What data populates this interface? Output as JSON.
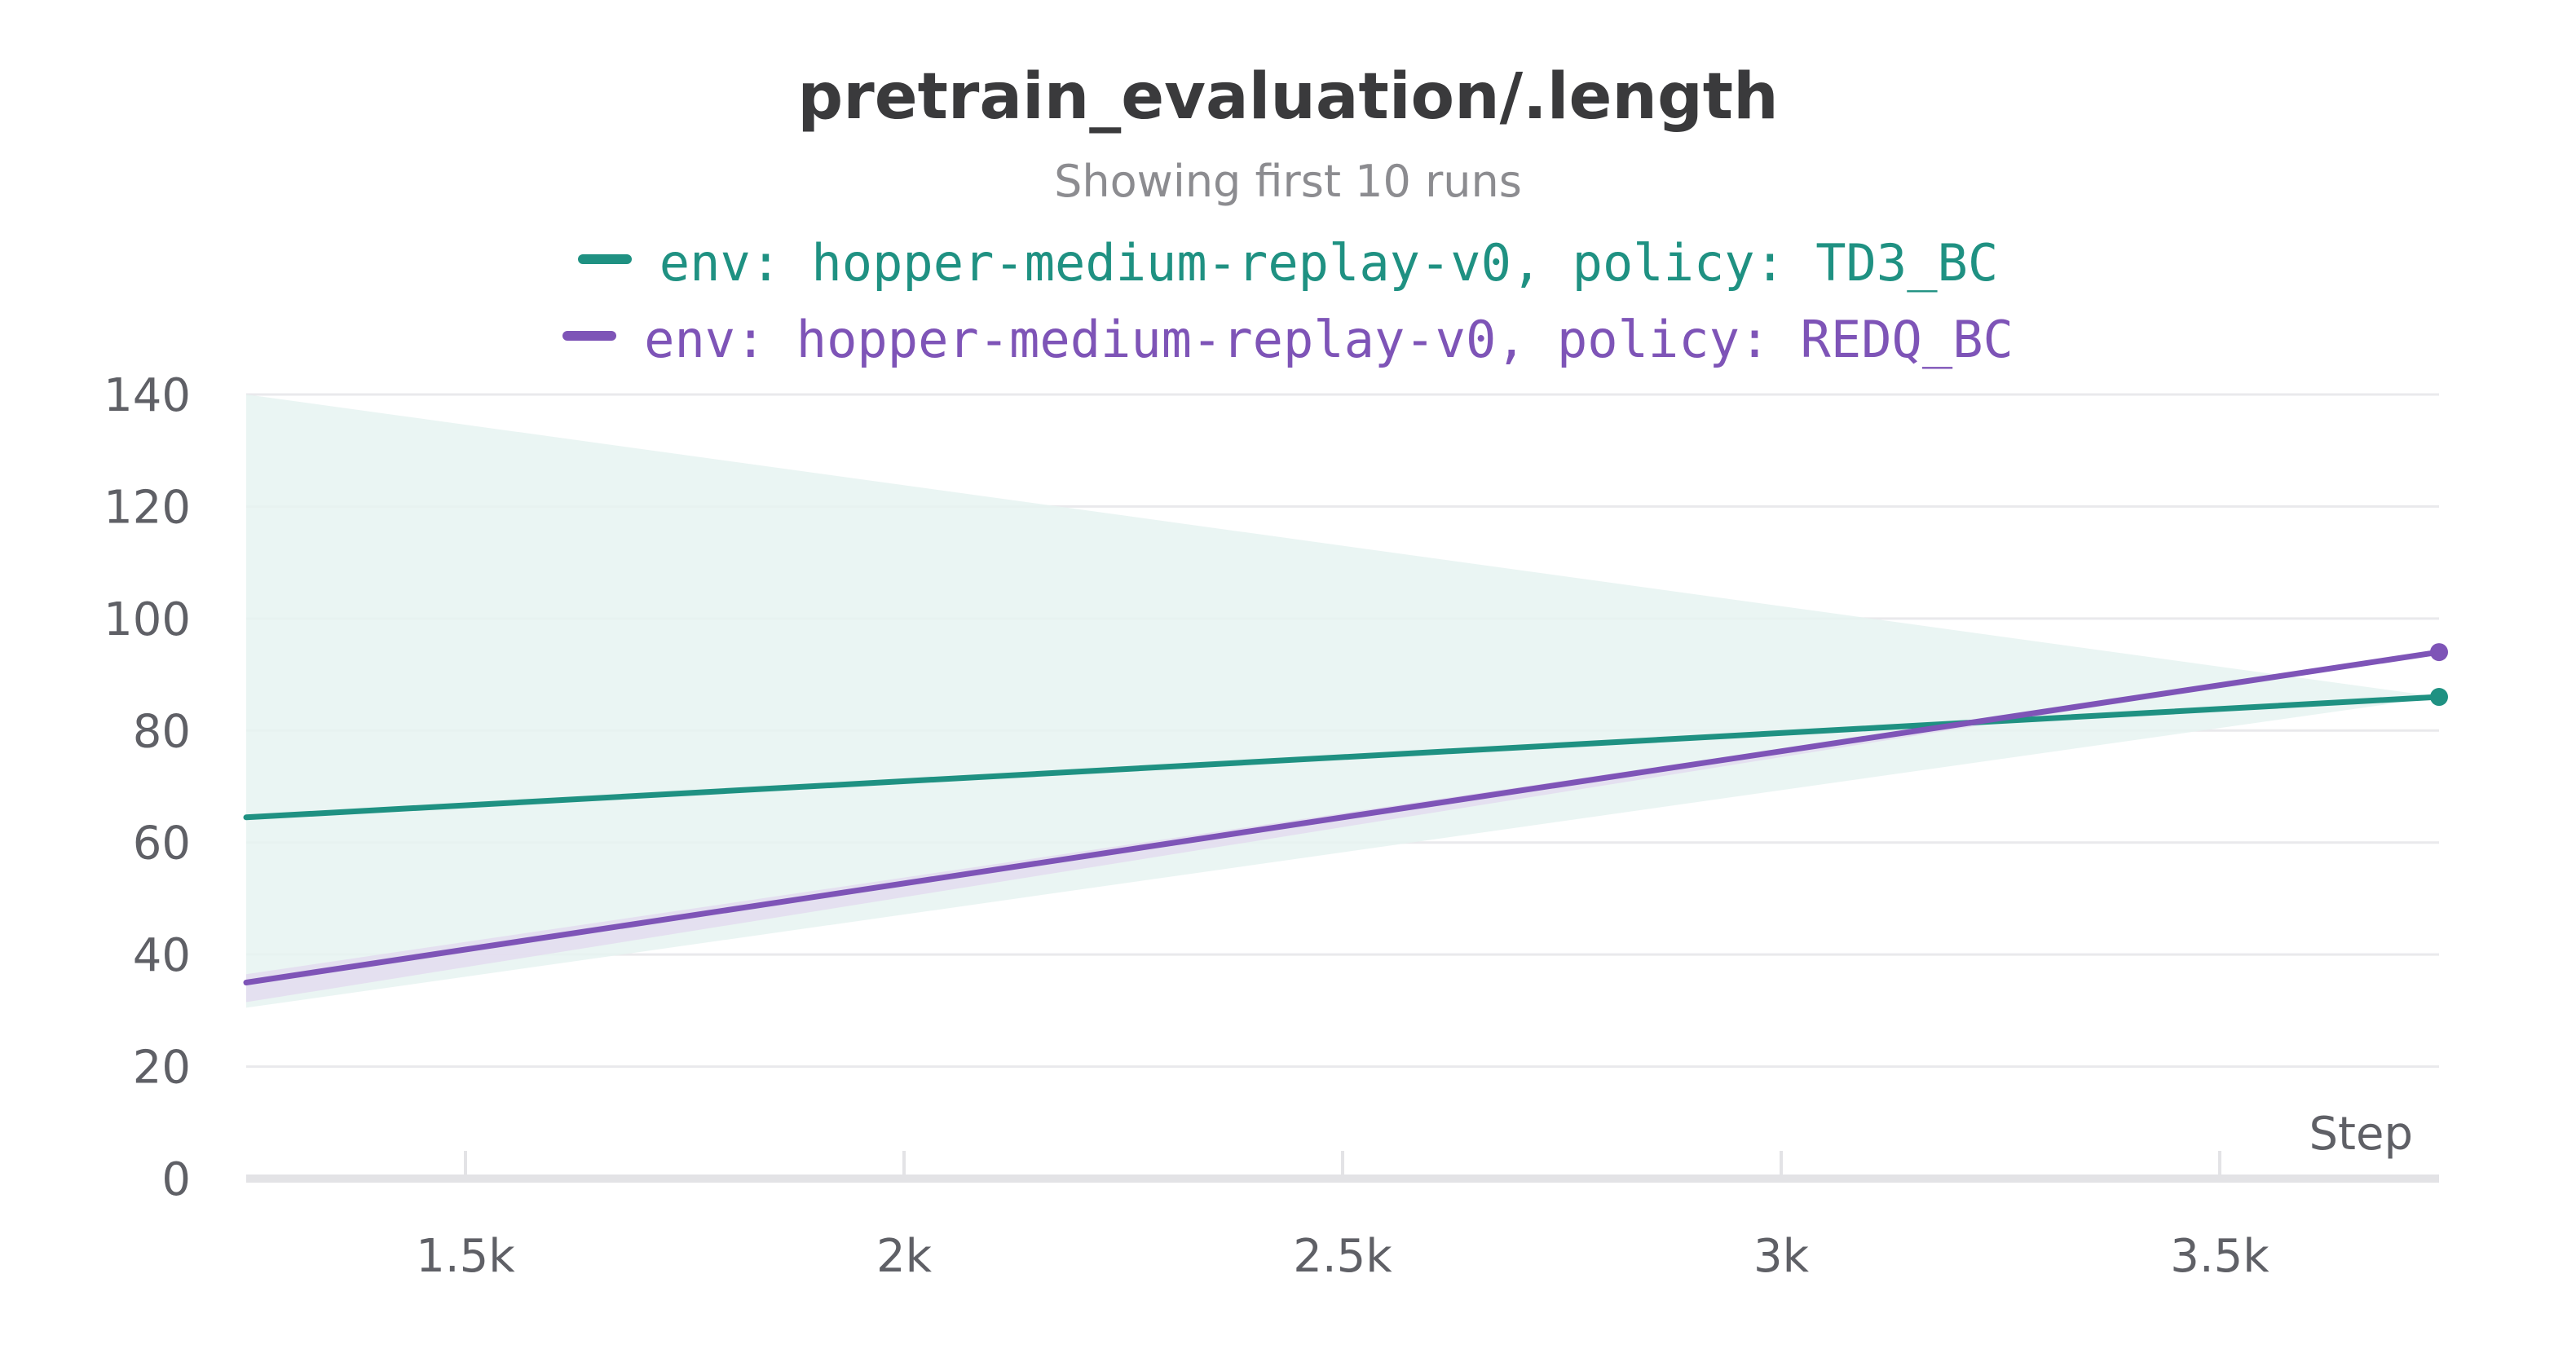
{
  "chart_data": {
    "type": "line",
    "title": "pretrain_evaluation/.length",
    "subtitle": "Showing first 10 runs",
    "xlabel": "Step",
    "ylabel": "",
    "xlim": [
      1250,
      3750
    ],
    "ylim": [
      0,
      140
    ],
    "x_ticks": [
      1500,
      2000,
      2500,
      3000,
      3500
    ],
    "x_tick_labels": [
      "1.5k",
      "2k",
      "2.5k",
      "3k",
      "3.5k"
    ],
    "y_ticks": [
      0,
      20,
      40,
      60,
      80,
      100,
      120,
      140
    ],
    "y_tick_labels": [
      "0",
      "20",
      "40",
      "60",
      "80",
      "100",
      "120",
      "140"
    ],
    "grid": true,
    "legend_position": "top",
    "series": [
      {
        "name": "env: hopper-medium-replay-v0, policy: TD3_BC",
        "color": "#1f9182",
        "x": [
          1250,
          3750
        ],
        "y": [
          64.5,
          86
        ],
        "band": {
          "upper": [
            140,
            86
          ],
          "lower": [
            30.5,
            86
          ],
          "color": "#e6f3f1"
        },
        "end_marker": true
      },
      {
        "name": "env: hopper-medium-replay-v0, policy: REDQ_BC",
        "color": "#7e54b7",
        "x": [
          1250,
          3750
        ],
        "y": [
          35,
          94
        ],
        "band": {
          "upper": [
            36.5,
            94
          ],
          "lower": [
            31.5,
            94
          ],
          "color": "#e3dcef"
        },
        "end_marker": true
      }
    ]
  }
}
